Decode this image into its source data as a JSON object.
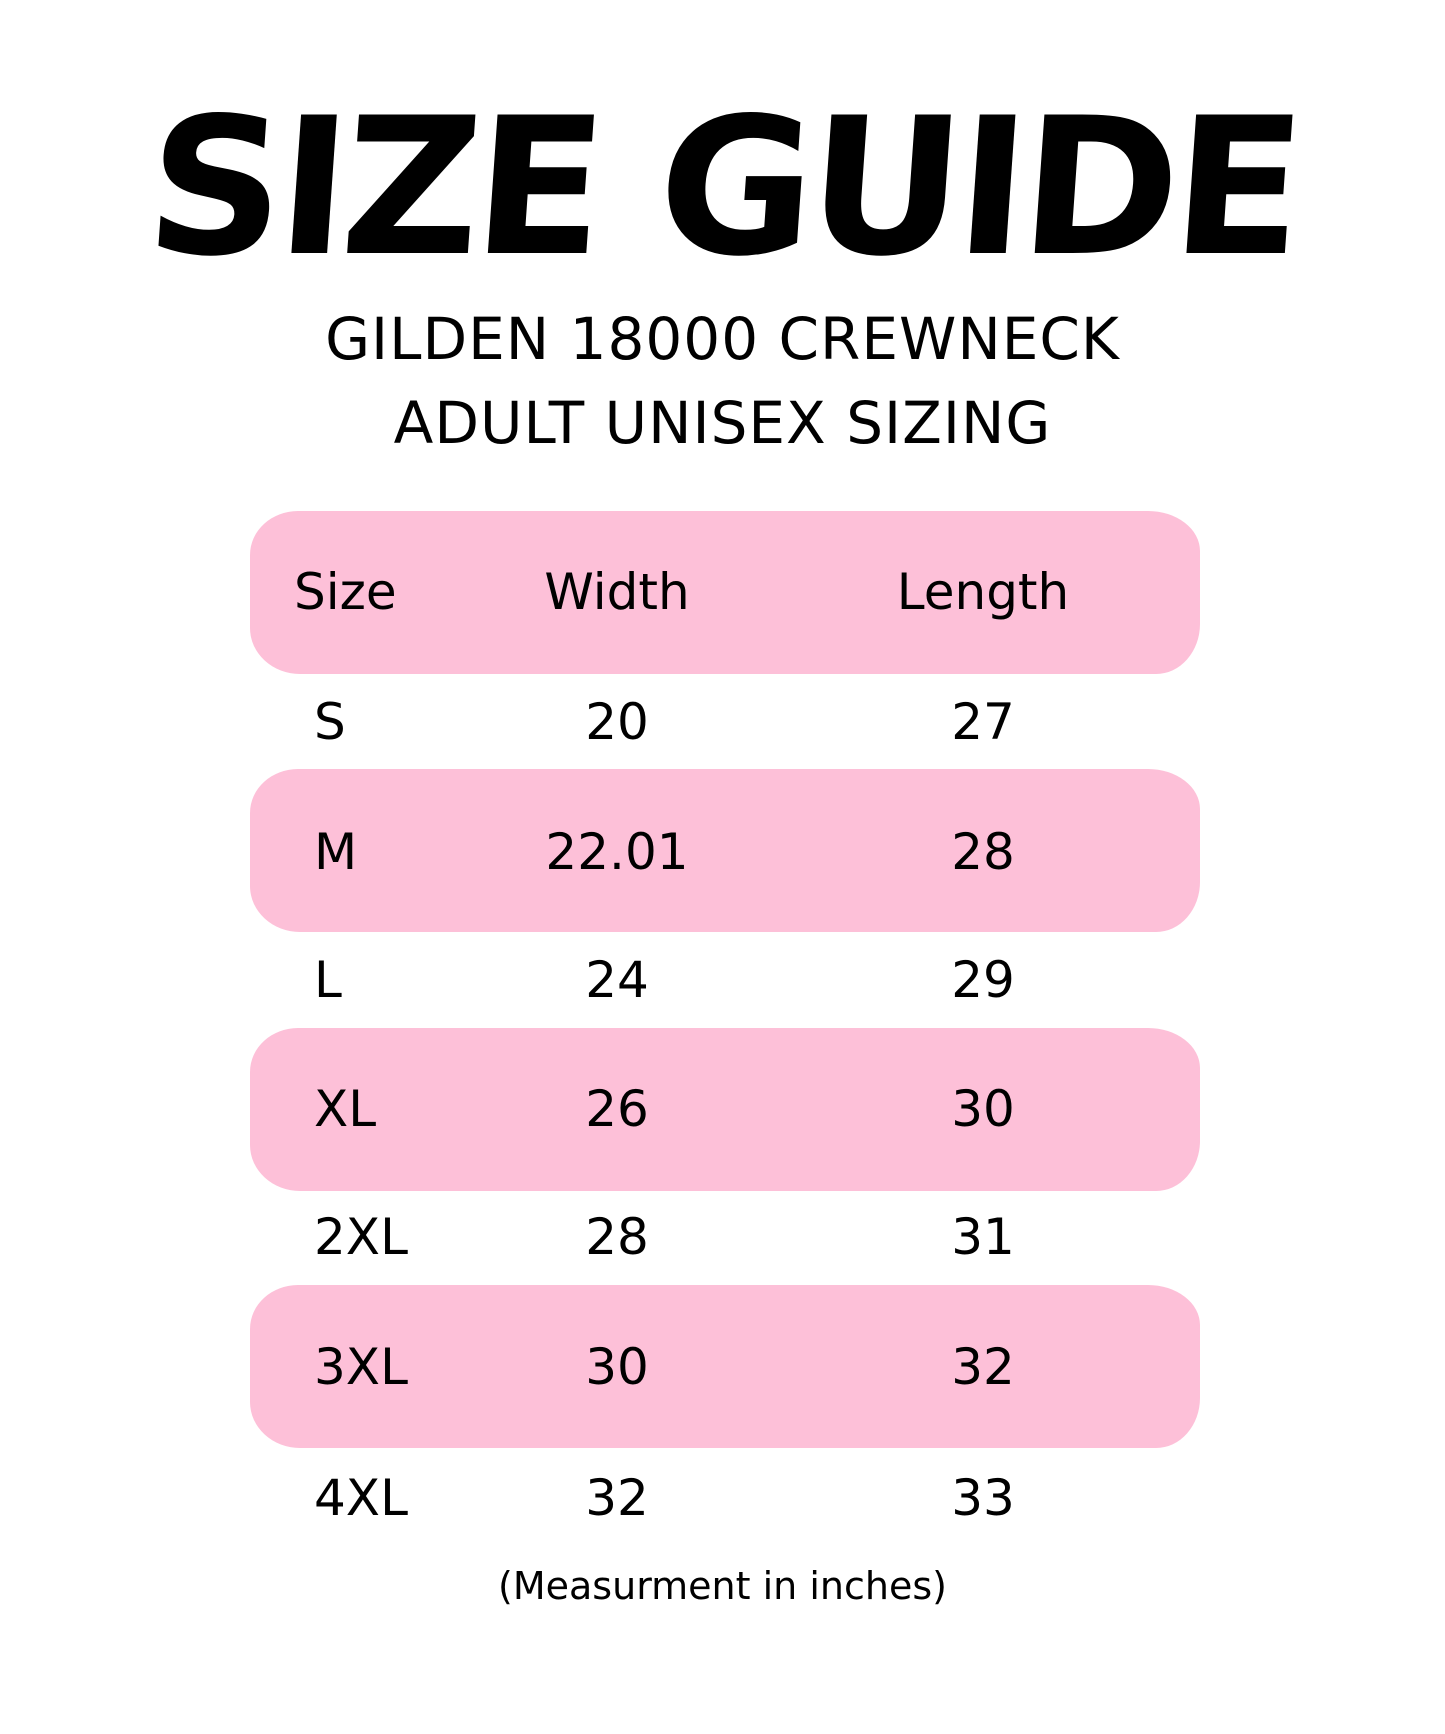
{
  "title": "SIZE GUIDE",
  "subtitle_lines": [
    "GILDEN 18000 CREWNECK",
    "ADULT UNISEX SIZING"
  ],
  "table": {
    "headers": [
      "Size",
      "Width",
      "Length"
    ],
    "rows": [
      [
        "S",
        "20",
        "27"
      ],
      [
        "M",
        "22.01",
        "28"
      ],
      [
        "L",
        "24",
        "29"
      ],
      [
        "XL",
        "26",
        "30"
      ],
      [
        "2XL",
        "28",
        "31"
      ],
      [
        "3XL",
        "30",
        "32"
      ],
      [
        "4XL",
        "32",
        "33"
      ]
    ]
  },
  "footnote": "(Measurment in inches)",
  "colors": {
    "band": "#fdc0d8",
    "text": "#000000",
    "background": "#ffffff"
  }
}
